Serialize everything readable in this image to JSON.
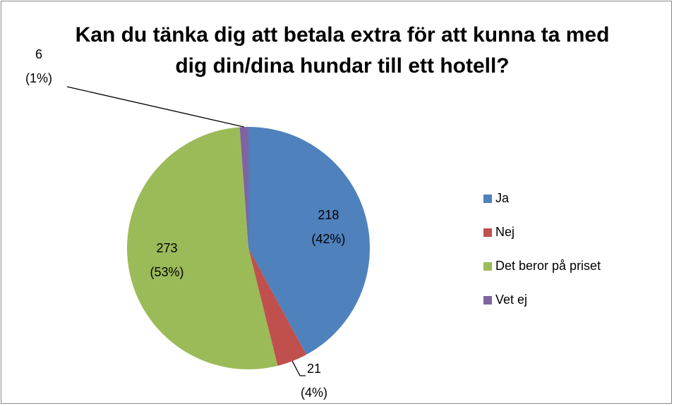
{
  "chart_data": {
    "type": "pie",
    "title": "Kan du tänka dig att betala extra för att kunna ta med dig din/dina hundar till ett hotell?",
    "categories": [
      "Ja",
      "Nej",
      "Det beror på priset",
      "Vet ej"
    ],
    "values": [
      218,
      21,
      273,
      6
    ],
    "percent_labels": [
      "(42%)",
      "(4%)",
      "(53%)",
      "(1%)"
    ],
    "colors": [
      "#4f81bd",
      "#c0504d",
      "#9bbb59",
      "#8064a2"
    ],
    "legend": "right"
  }
}
